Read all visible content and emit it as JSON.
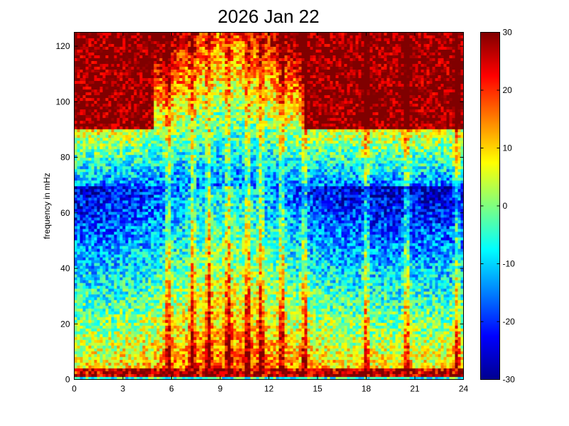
{
  "chart_data": {
    "type": "heatmap",
    "title": "2026 Jan 22",
    "xlabel": "",
    "ylabel": "frequency in mHz",
    "x_range": [
      0,
      24
    ],
    "y_range": [
      0,
      125
    ],
    "x_ticks": [
      0,
      3,
      6,
      9,
      12,
      15,
      18,
      21,
      24
    ],
    "y_ticks": [
      0,
      20,
      40,
      60,
      80,
      100,
      120
    ],
    "colorbar": {
      "range": [
        -30,
        30
      ],
      "ticks": [
        -30,
        -20,
        -10,
        0,
        10,
        20,
        30
      ],
      "colormap": "jet"
    },
    "grid": "off",
    "approx_structure": {
      "background_high_freq_value": 30,
      "low_band_value": 25,
      "broadband_event_hours": [
        5.8,
        7.3,
        8.3,
        9.5,
        10.7,
        11.5,
        12.8,
        14.2,
        18,
        20.5,
        23.6
      ],
      "energetic_period_hours": [
        6,
        14
      ]
    }
  }
}
